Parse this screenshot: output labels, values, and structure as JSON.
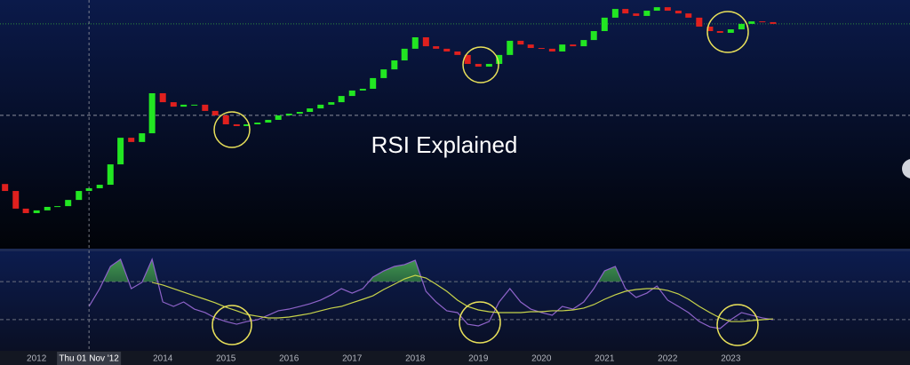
{
  "chart_data": [
    {
      "type": "candlestick",
      "title": "RSI Explained",
      "x": [
        2011.5,
        2011.67,
        2011.83,
        2012,
        2012.17,
        2012.33,
        2012.5,
        2012.67,
        2012.83,
        2013,
        2013.17,
        2013.33,
        2013.5,
        2013.67,
        2013.83,
        2014,
        2014.17,
        2014.33,
        2014.5,
        2014.67,
        2014.83,
        2015,
        2015.17,
        2015.33,
        2015.5,
        2015.67,
        2015.83,
        2016,
        2016.17,
        2016.33,
        2016.5,
        2016.67,
        2016.83,
        2017,
        2017.17,
        2017.33,
        2017.5,
        2017.67,
        2017.83,
        2018,
        2018.17,
        2018.33,
        2018.5,
        2018.67,
        2018.83,
        2019,
        2019.17,
        2019.33,
        2019.5,
        2019.67,
        2019.83,
        2020,
        2020.17,
        2020.33,
        2020.5,
        2020.67,
        2020.83,
        2021,
        2021.17,
        2021.33,
        2021.5,
        2021.67,
        2021.83,
        2022,
        2022.17,
        2022.33,
        2022.5,
        2022.67,
        2022.83,
        2023,
        2023.17,
        2023.33,
        2023.5,
        2023.67
      ],
      "open": [
        26.0,
        23.2,
        16.1,
        14.3,
        15.4,
        16.8,
        17.1,
        19.6,
        23.2,
        24.3,
        25.7,
        33.9,
        44.6,
        42.9,
        46.4,
        62.5,
        58.9,
        57.1,
        57.9,
        57.9,
        55.4,
        53.6,
        50.0,
        49.3,
        50.0,
        50.7,
        51.8,
        53.6,
        54.3,
        55.0,
        56.4,
        57.9,
        58.9,
        61.4,
        63.6,
        64.3,
        68.6,
        72.1,
        75.7,
        80.4,
        85.0,
        81.4,
        80.4,
        79.3,
        77.9,
        74.3,
        73.2,
        74.3,
        77.9,
        83.6,
        82.1,
        80.7,
        80.4,
        79.3,
        82.1,
        81.4,
        83.9,
        87.5,
        92.9,
        96.4,
        94.6,
        93.6,
        95.7,
        97.1,
        95.7,
        94.6,
        92.9,
        89.3,
        87.5,
        86.8,
        88.2,
        90.4,
        91.4,
        91.1
      ],
      "close": [
        23.2,
        16.1,
        14.3,
        15.4,
        16.8,
        17.1,
        19.6,
        23.2,
        24.3,
        25.7,
        33.9,
        44.6,
        42.9,
        46.4,
        62.5,
        58.9,
        57.1,
        57.9,
        57.9,
        55.4,
        53.6,
        50.0,
        49.3,
        50.0,
        50.7,
        51.8,
        53.6,
        54.3,
        55.0,
        56.4,
        57.9,
        58.9,
        61.4,
        63.6,
        64.3,
        68.6,
        72.1,
        75.7,
        80.4,
        85.0,
        81.4,
        80.4,
        79.3,
        77.9,
        74.3,
        73.2,
        74.3,
        77.9,
        83.6,
        82.1,
        80.7,
        80.4,
        79.3,
        82.1,
        81.4,
        83.9,
        87.5,
        92.9,
        96.4,
        94.6,
        93.6,
        95.7,
        97.1,
        95.7,
        94.6,
        92.9,
        89.3,
        87.5,
        86.8,
        88.2,
        90.4,
        91.4,
        91.1,
        90.4
      ],
      "up_color": "#22e622",
      "down_color": "#e0201e",
      "xlim": [
        2011.42,
        2025.84
      ],
      "ylim": [
        0,
        100
      ],
      "hlines": [
        90.4,
        53.6
      ]
    },
    {
      "type": "line",
      "x": [
        2011.5,
        2011.67,
        2011.83,
        2012,
        2012.17,
        2012.33,
        2012.5,
        2012.67,
        2012.83,
        2013,
        2013.17,
        2013.33,
        2013.5,
        2013.67,
        2013.83,
        2014,
        2014.17,
        2014.33,
        2014.5,
        2014.67,
        2014.83,
        2015,
        2015.17,
        2015.33,
        2015.5,
        2015.67,
        2015.83,
        2016,
        2016.17,
        2016.33,
        2016.5,
        2016.67,
        2016.83,
        2017,
        2017.17,
        2017.33,
        2017.5,
        2017.67,
        2017.83,
        2018,
        2018.17,
        2018.33,
        2018.5,
        2018.67,
        2018.83,
        2019,
        2019.17,
        2019.33,
        2019.5,
        2019.67,
        2019.83,
        2020,
        2020.17,
        2020.33,
        2020.5,
        2020.67,
        2020.83,
        2021,
        2021.17,
        2021.33,
        2021.5,
        2021.67,
        2021.83,
        2022,
        2022.17,
        2022.33,
        2022.5,
        2022.67,
        2022.83,
        2023,
        2023.17,
        2023.33,
        2023.5,
        2023.67
      ],
      "series": [
        {
          "color": "#8e63c9",
          "values": [
            null,
            null,
            null,
            null,
            null,
            null,
            null,
            null,
            43.9,
            62.6,
            86.0,
            93.5,
            62.6,
            69.2,
            93.5,
            48.6,
            43.9,
            48.6,
            41.1,
            37.4,
            31.8,
            28.0,
            25.2,
            28.0,
            29.9,
            34.6,
            39.3,
            41.1,
            43.9,
            46.7,
            50.5,
            56.1,
            62.6,
            57.9,
            62.6,
            74.8,
            81.3,
            86.0,
            87.9,
            92.5,
            59.8,
            48.6,
            39.3,
            37.4,
            25.2,
            23.4,
            28.0,
            48.6,
            62.6,
            48.6,
            41.1,
            37.4,
            34.6,
            43.9,
            41.1,
            48.6,
            62.6,
            81.3,
            86.0,
            62.6,
            53.3,
            57.9,
            65.4,
            50.5,
            43.9,
            37.4,
            28.0,
            22.4,
            20.6,
            29.9,
            37.4,
            34.6,
            31.8,
            29.9
          ]
        },
        {
          "color": "#c7d34a",
          "values": [
            null,
            null,
            null,
            null,
            null,
            null,
            null,
            null,
            null,
            null,
            null,
            null,
            null,
            null,
            69.2,
            66.4,
            62.6,
            58.9,
            55.1,
            51.4,
            47.7,
            43.0,
            39.3,
            35.5,
            33.6,
            31.8,
            31.8,
            32.7,
            34.6,
            36.4,
            39.3,
            42.1,
            43.9,
            47.7,
            51.4,
            55.1,
            61.7,
            67.3,
            72.9,
            76.6,
            73.8,
            67.3,
            59.8,
            50.5,
            43.9,
            40.2,
            38.3,
            37.4,
            37.4,
            37.4,
            38.3,
            38.3,
            39.3,
            39.3,
            40.2,
            42.1,
            45.8,
            51.4,
            56.1,
            59.8,
            61.7,
            62.6,
            62.6,
            60.7,
            57.0,
            51.4,
            43.9,
            37.4,
            31.8,
            28.0,
            28.0,
            29.0,
            29.9,
            30.8
          ]
        }
      ],
      "xlim": [
        2011.42,
        2025.84
      ],
      "ylim": [
        0,
        100
      ],
      "hlines": [
        70,
        30
      ],
      "overbought": 70,
      "xticks": [
        2012,
        2014,
        2015,
        2016,
        2017,
        2018,
        2019,
        2020,
        2021,
        2022,
        2023
      ],
      "crosshair": {
        "value": 2012.83,
        "label": "Thu 01 Nov '12"
      }
    }
  ]
}
